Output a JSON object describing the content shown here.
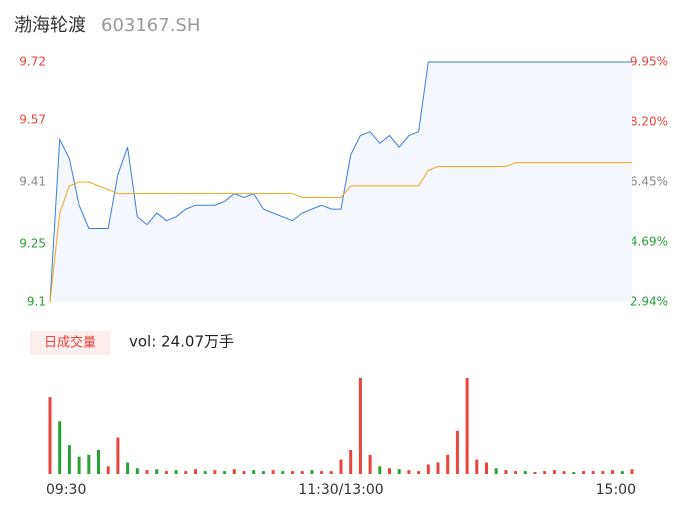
{
  "chart_data": {
    "type": "line",
    "title": "渤海轮渡",
    "subtitle": "603167.SH",
    "x": [
      0,
      4,
      8,
      12,
      16,
      20,
      24,
      28,
      32,
      36,
      40,
      44,
      48,
      52,
      56,
      60,
      64,
      68,
      72,
      76,
      80,
      84,
      88,
      92,
      96,
      100,
      104,
      108,
      112,
      116,
      120,
      124,
      128,
      132,
      136,
      140,
      144,
      148,
      152,
      156,
      160,
      164,
      168,
      172,
      176,
      180,
      184,
      188,
      192,
      196,
      200,
      204,
      208,
      212,
      216,
      220,
      224,
      228,
      232,
      236,
      240
    ],
    "xlim": [
      0,
      240
    ],
    "xticks": [
      {
        "value": 0,
        "label": "09:30"
      },
      {
        "value": 120,
        "label": "11:30/13:00"
      },
      {
        "value": 240,
        "label": "15:00"
      }
    ],
    "ylim": [
      9.1,
      9.72
    ],
    "yticks": [
      9.72,
      9.57,
      9.41,
      9.25,
      9.1
    ],
    "ytick_colors": [
      "#e8453c",
      "#e8453c",
      "#888888",
      "#2aa137",
      "#2aa137"
    ],
    "y2lim": [
      2.94,
      9.95
    ],
    "y2ticks": [
      {
        "value": 9.95,
        "label": "9.95%"
      },
      {
        "value": 8.2,
        "label": "8.20%"
      },
      {
        "value": 6.45,
        "label": "6.45%"
      },
      {
        "value": 4.69,
        "label": "4.69%"
      },
      {
        "value": 2.94,
        "label": "2.94%"
      }
    ],
    "y2tick_colors": [
      "#e8453c",
      "#e8453c",
      "#888888",
      "#2aa137",
      "#2aa137"
    ],
    "series": [
      {
        "color": "#3b7ddd",
        "fill": "#f4f7fd",
        "values": [
          9.1,
          9.52,
          9.47,
          9.35,
          9.29,
          9.29,
          9.29,
          9.43,
          9.5,
          9.32,
          9.3,
          9.33,
          9.31,
          9.32,
          9.34,
          9.35,
          9.35,
          9.35,
          9.36,
          9.38,
          9.37,
          9.38,
          9.34,
          9.33,
          9.32,
          9.31,
          9.33,
          9.34,
          9.35,
          9.34,
          9.34,
          9.48,
          9.53,
          9.54,
          9.51,
          9.53,
          9.5,
          9.53,
          9.54,
          9.72,
          9.72,
          9.72,
          9.72,
          9.72,
          9.72,
          9.72,
          9.72,
          9.72,
          9.72,
          9.72,
          9.72,
          9.72,
          9.72,
          9.72,
          9.72,
          9.72,
          9.72,
          9.72,
          9.72,
          9.72,
          9.72
        ]
      },
      {
        "color": "#f0a818",
        "values": [
          9.1,
          9.33,
          9.4,
          9.41,
          9.41,
          9.4,
          9.39,
          9.38,
          9.38,
          9.38,
          9.38,
          9.38,
          9.38,
          9.38,
          9.38,
          9.38,
          9.38,
          9.38,
          9.38,
          9.38,
          9.38,
          9.38,
          9.38,
          9.38,
          9.38,
          9.38,
          9.37,
          9.37,
          9.37,
          9.37,
          9.37,
          9.4,
          9.4,
          9.4,
          9.4,
          9.4,
          9.4,
          9.4,
          9.4,
          9.44,
          9.45,
          9.45,
          9.45,
          9.45,
          9.45,
          9.45,
          9.45,
          9.45,
          9.46,
          9.46,
          9.46,
          9.46,
          9.46,
          9.46,
          9.46,
          9.46,
          9.46,
          9.46,
          9.46,
          9.46,
          9.46
        ]
      }
    ],
    "volume_legend": "日成交量",
    "volume_text": "vol: 24.07万手",
    "volume": {
      "values": [
        80,
        55,
        30,
        18,
        20,
        25,
        8,
        38,
        12,
        6,
        4,
        5,
        3,
        4,
        3,
        5,
        3,
        4,
        3,
        5,
        3,
        4,
        3,
        4,
        3,
        3,
        3,
        4,
        3,
        3,
        15,
        25,
        100,
        20,
        8,
        6,
        5,
        4,
        3,
        10,
        12,
        20,
        45,
        100,
        15,
        12,
        6,
        4,
        3,
        3,
        2,
        3,
        4,
        3,
        2,
        3,
        3,
        3,
        4,
        3,
        5
      ],
      "colors": [
        "#e8453c",
        "#2aa137",
        "#2aa137",
        "#2aa137",
        "#2aa137",
        "#2aa137",
        "#e8453c",
        "#e8453c",
        "#2aa137",
        "#2aa137",
        "#e8453c",
        "#2aa137",
        "#e8453c",
        "#2aa137",
        "#e8453c",
        "#e8453c",
        "#2aa137",
        "#e8453c",
        "#2aa137",
        "#e8453c",
        "#e8453c",
        "#2aa137",
        "#2aa137",
        "#e8453c",
        "#2aa137",
        "#e8453c",
        "#e8453c",
        "#2aa137",
        "#e8453c",
        "#e8453c",
        "#e8453c",
        "#e8453c",
        "#e8453c",
        "#e8453c",
        "#2aa137",
        "#e8453c",
        "#2aa137",
        "#e8453c",
        "#e8453c",
        "#e8453c",
        "#e8453c",
        "#e8453c",
        "#e8453c",
        "#e8453c",
        "#e8453c",
        "#e8453c",
        "#2aa137",
        "#e8453c",
        "#e8453c",
        "#2aa137",
        "#e8453c",
        "#e8453c",
        "#e8453c",
        "#e8453c",
        "#2aa137",
        "#e8453c",
        "#e8453c",
        "#e8453c",
        "#e8453c",
        "#2aa137",
        "#e8453c"
      ]
    }
  }
}
